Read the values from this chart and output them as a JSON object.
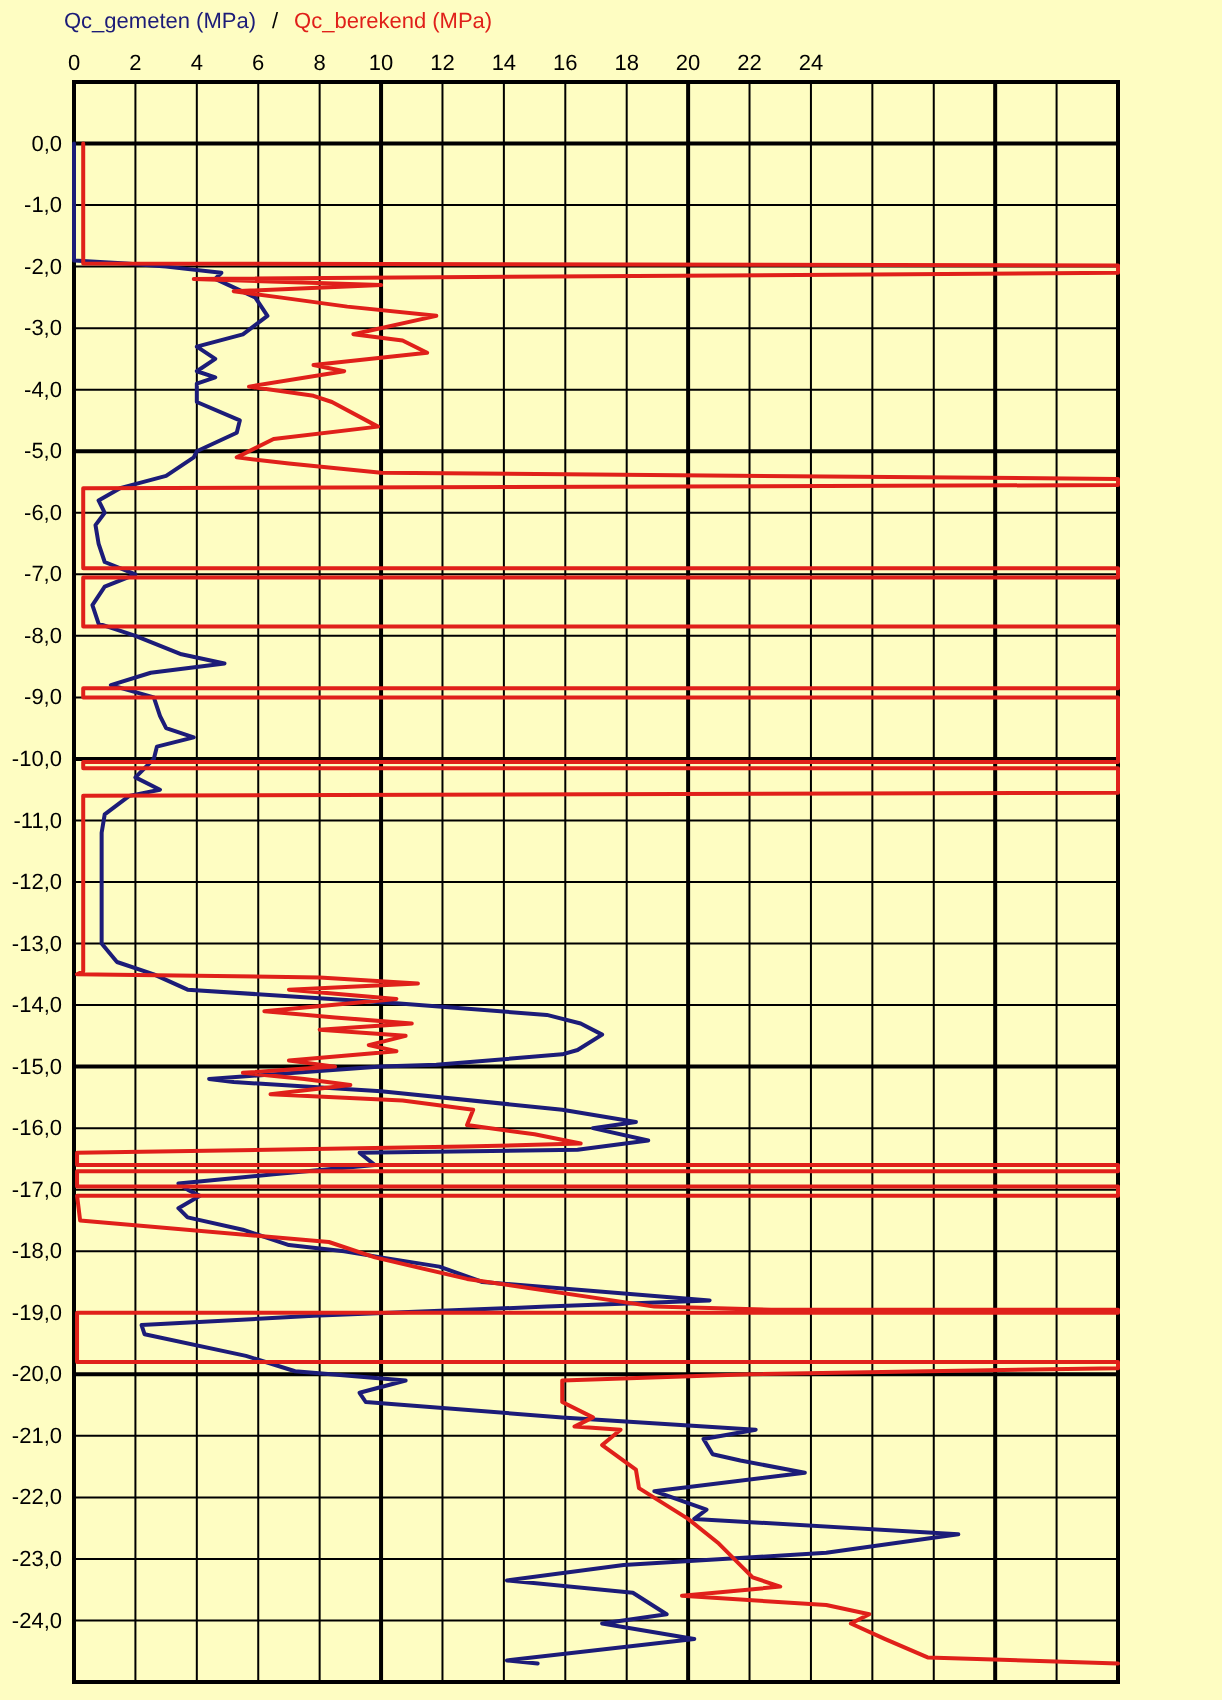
{
  "chart_data": {
    "type": "line",
    "xlim": [
      0,
      34
    ],
    "xticks": [
      0,
      2,
      4,
      6,
      8,
      10,
      12,
      14,
      16,
      18,
      20,
      22,
      24,
      {
        "value": 26,
        "label": null
      },
      {
        "value": 28,
        "label": null
      },
      {
        "value": 30,
        "label": null
      },
      {
        "value": 32,
        "label": null
      },
      {
        "value": 34,
        "label": null
      }
    ],
    "ylim": [
      -25,
      1
    ],
    "yticks": [
      {
        "value": 0,
        "label": "0,0"
      },
      {
        "value": -1,
        "label": "-1,0"
      },
      {
        "value": -2,
        "label": "-2,0"
      },
      {
        "value": -3,
        "label": "-3,0"
      },
      {
        "value": -4,
        "label": "-4,0"
      },
      {
        "value": -5,
        "label": "-5,0"
      },
      {
        "value": -6,
        "label": "-6,0"
      },
      {
        "value": -7,
        "label": "-7,0"
      },
      {
        "value": -8,
        "label": "-8,0"
      },
      {
        "value": -9,
        "label": "-9,0"
      },
      {
        "value": -10,
        "label": "-10,0"
      },
      {
        "value": -11,
        "label": "-11,0"
      },
      {
        "value": -12,
        "label": "-12,0"
      },
      {
        "value": -13,
        "label": "-13,0"
      },
      {
        "value": -14,
        "label": "-14,0"
      },
      {
        "value": -15,
        "label": "-15,0"
      },
      {
        "value": -16,
        "label": "-16,0"
      },
      {
        "value": -17,
        "label": "-17,0"
      },
      {
        "value": -18,
        "label": "-18,0"
      },
      {
        "value": -19,
        "label": "-19,0"
      },
      {
        "value": -20,
        "label": "-20,0"
      },
      {
        "value": -21,
        "label": "-21,0"
      },
      {
        "value": -22,
        "label": "-22,0"
      },
      {
        "value": -23,
        "label": "-23,0"
      },
      {
        "value": -24,
        "label": "-24,0"
      }
    ],
    "grid": true,
    "legend": "top left",
    "annotations": [
      "/"
    ],
    "series": [
      {
        "name": "Qc_gemeten (MPa)",
        "color": "#1c1c78",
        "x": [
          0,
          0,
          1.7,
          3.0,
          4.8,
          4.6,
          5.9,
          6.3,
          5.5,
          4.0,
          4.6,
          4.0,
          4.6,
          4.0,
          4.0,
          5.4,
          5.3,
          4.0,
          3.9,
          3.0,
          1.5,
          0.8,
          1.0,
          0.7,
          0.8,
          1.0,
          2.0,
          1.0,
          0.6,
          0.8,
          2.0,
          3.5,
          4.9,
          2.5,
          1.2,
          2.6,
          2.8,
          3.0,
          3.9,
          2.7,
          2.6,
          2.0,
          2.8,
          1.8,
          1.0,
          0.9,
          0.9,
          0.9,
          1.4,
          2.6,
          3.7,
          10.5,
          15.4,
          16.5,
          17.2,
          16.4,
          15.9,
          11.8,
          10.0,
          4.4,
          5.2,
          10.0,
          15.9,
          18.3,
          16.9,
          18.7,
          16.4,
          9.3,
          9.8,
          6.5,
          3.4,
          3.7,
          4.1,
          3.4,
          3.7,
          5.5,
          7.0,
          8.8,
          10.0,
          11.9,
          13.3,
          20.7,
          15.4,
          7.8,
          2.2,
          2.3,
          5.6,
          7.2,
          10.8,
          9.3,
          9.5,
          15.9,
          22.2,
          20.5,
          20.8,
          21.7,
          23.8,
          18.9,
          20.6,
          20.2,
          28.8,
          24.5,
          17.9,
          14.1,
          18.2,
          19.3,
          17.2,
          20.2,
          14.1,
          15.1
        ],
        "values": [
          0,
          -1.9,
          -1.95,
          -2.0,
          -2.1,
          -2.2,
          -2.5,
          -2.8,
          -3.1,
          -3.3,
          -3.5,
          -3.7,
          -3.8,
          -3.9,
          -4.2,
          -4.5,
          -4.7,
          -5.0,
          -5.1,
          -5.4,
          -5.6,
          -5.8,
          -6.0,
          -6.2,
          -6.5,
          -6.8,
          -7.0,
          -7.2,
          -7.5,
          -7.8,
          -8.0,
          -8.3,
          -8.45,
          -8.6,
          -8.8,
          -9.0,
          -9.3,
          -9.5,
          -9.65,
          -9.8,
          -10.0,
          -10.3,
          -10.5,
          -10.6,
          -10.9,
          -11.2,
          -12.0,
          -13.0,
          -13.3,
          -13.5,
          -13.75,
          -13.97,
          -14.16,
          -14.3,
          -14.48,
          -14.73,
          -14.8,
          -14.97,
          -15.0,
          -15.2,
          -15.25,
          -15.4,
          -15.7,
          -15.9,
          -16.0,
          -16.2,
          -16.35,
          -16.4,
          -16.6,
          -16.75,
          -16.9,
          -17.0,
          -17.1,
          -17.3,
          -17.45,
          -17.65,
          -17.9,
          -18.0,
          -18.1,
          -18.25,
          -18.5,
          -18.8,
          -18.9,
          -19.05,
          -19.2,
          -19.35,
          -19.7,
          -19.95,
          -20.1,
          -20.3,
          -20.45,
          -20.7,
          -20.9,
          -21.05,
          -21.3,
          -21.4,
          -21.6,
          -21.9,
          -22.2,
          -22.35,
          -22.6,
          -22.9,
          -23.1,
          -23.35,
          -23.55,
          -23.9,
          -24.05,
          -24.3,
          -24.65,
          -24.7
        ]
      },
      {
        "name": "Qc_berekend (MPa)",
        "color": "#e0201a",
        "x": [
          0.3,
          0.3,
          34,
          34,
          3.9,
          10.0,
          5.2,
          6.7,
          8.9,
          11.8,
          9.1,
          10.7,
          11.5,
          7.8,
          8.8,
          5.7,
          7.8,
          8.4,
          9.9,
          6.5,
          5.3,
          7.0,
          10.0,
          34,
          34,
          0.3,
          0.3,
          34,
          34,
          0.3,
          0.3,
          34,
          34,
          0.3,
          0.3,
          34,
          34,
          0.3,
          0.3,
          34,
          34,
          0.3,
          0.3,
          0.1,
          8.0,
          11.2,
          7.0,
          10.5,
          6.2,
          8.5,
          11.0,
          8.0,
          10.8,
          9.6,
          10.5,
          7.0,
          8.5,
          5.5,
          7.5,
          9.0,
          6.4,
          10.7,
          13.0,
          12.8,
          15.0,
          16.5,
          12.7,
          0.1,
          0.1,
          34,
          34,
          0.1,
          0.1,
          34,
          34,
          0.1,
          0.2,
          8.3,
          9.8,
          12.8,
          18.9,
          22.7,
          34,
          34,
          0.1,
          0.1,
          34,
          34,
          22.0,
          15.9,
          15.9,
          16.9,
          16.3,
          17.8,
          17.2,
          18.3,
          18.4,
          20.0,
          21.0,
          22.1,
          23.0,
          19.8,
          24.5,
          25.9,
          25.3,
          26.4,
          27.8,
          34
        ],
        "values": [
          0,
          -1.95,
          -1.98,
          -2.1,
          -2.2,
          -2.3,
          -2.4,
          -2.5,
          -2.65,
          -2.8,
          -3.1,
          -3.2,
          -3.4,
          -3.6,
          -3.7,
          -3.95,
          -4.1,
          -4.2,
          -4.6,
          -4.8,
          -5.1,
          -5.2,
          -5.35,
          -5.45,
          -5.55,
          -5.6,
          -6.9,
          -6.9,
          -7.05,
          -7.05,
          -7.85,
          -7.85,
          -8.85,
          -8.85,
          -9.0,
          -9.0,
          -10.05,
          -10.05,
          -10.15,
          -10.15,
          -10.55,
          -10.6,
          -13.45,
          -13.5,
          -13.55,
          -13.65,
          -13.75,
          -13.9,
          -14.1,
          -14.2,
          -14.3,
          -14.4,
          -14.5,
          -14.65,
          -14.75,
          -14.9,
          -15.0,
          -15.1,
          -15.2,
          -15.3,
          -15.45,
          -15.55,
          -15.7,
          -15.95,
          -16.1,
          -16.25,
          -16.3,
          -16.4,
          -16.6,
          -16.6,
          -16.7,
          -16.7,
          -16.95,
          -16.95,
          -17.1,
          -17.1,
          -17.5,
          -17.85,
          -18.1,
          -18.45,
          -18.9,
          -18.95,
          -18.95,
          -19.0,
          -19.0,
          -19.8,
          -19.8,
          -19.9,
          -20.0,
          -20.1,
          -20.45,
          -20.7,
          -20.85,
          -20.9,
          -21.15,
          -21.55,
          -21.85,
          -22.35,
          -22.75,
          -23.3,
          -23.45,
          -23.6,
          -23.75,
          -23.9,
          -24.05,
          -24.3,
          -24.6,
          -24.7
        ]
      }
    ]
  }
}
